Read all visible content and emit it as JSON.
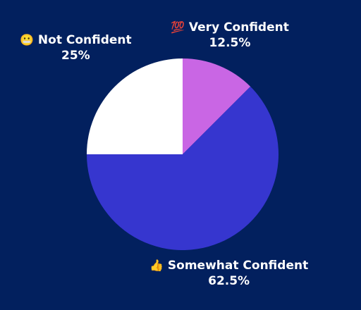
{
  "background": "#02205e",
  "chart_data": {
    "type": "pie",
    "title": "",
    "slices": [
      {
        "label": "Very Confident",
        "emoji": "💯",
        "value": 12.5,
        "value_label": "12.5%",
        "color": "#c966e4"
      },
      {
        "label": "Somewhat Confident",
        "emoji": "👍",
        "value": 62.5,
        "value_label": "62.5%",
        "color": "#3636cf"
      },
      {
        "label": "Not Confident",
        "emoji": "😬",
        "value": 25,
        "value_label": "25%",
        "color": "#ffffff"
      }
    ],
    "start_angle": "12 o'clock",
    "direction": "clockwise",
    "legend": "none"
  }
}
